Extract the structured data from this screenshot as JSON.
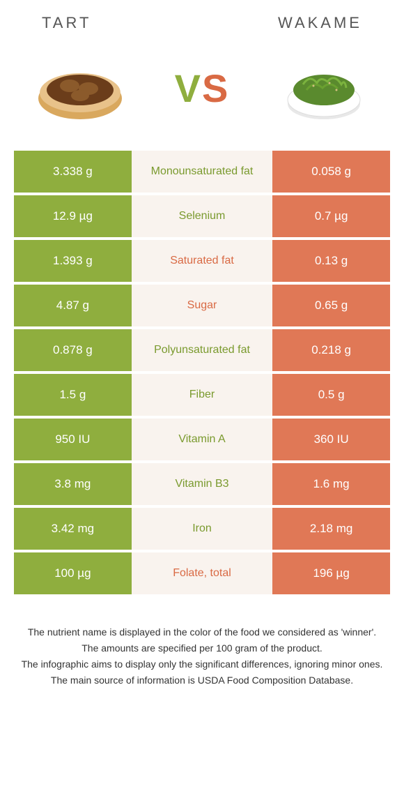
{
  "header": {
    "left_title": "TART",
    "right_title": "WAKAME"
  },
  "vs": {
    "v": "V",
    "s": "S"
  },
  "colors": {
    "green": "#8fae3e",
    "orange": "#e07856",
    "mid_bg": "#f9f3ee",
    "txt_green": "#7a9a2e",
    "txt_orange": "#d96a44"
  },
  "rows": [
    {
      "left": "3.338 g",
      "label": "Monounsaturated fat",
      "right": "0.058 g",
      "winner": "left"
    },
    {
      "left": "12.9 µg",
      "label": "Selenium",
      "right": "0.7 µg",
      "winner": "left"
    },
    {
      "left": "1.393 g",
      "label": "Saturated fat",
      "right": "0.13 g",
      "winner": "right"
    },
    {
      "left": "4.87 g",
      "label": "Sugar",
      "right": "0.65 g",
      "winner": "right"
    },
    {
      "left": "0.878 g",
      "label": "Polyunsaturated fat",
      "right": "0.218 g",
      "winner": "left"
    },
    {
      "left": "1.5 g",
      "label": "Fiber",
      "right": "0.5 g",
      "winner": "left"
    },
    {
      "left": "950 IU",
      "label": "Vitamin A",
      "right": "360 IU",
      "winner": "left"
    },
    {
      "left": "3.8 mg",
      "label": "Vitamin B3",
      "right": "1.6 mg",
      "winner": "left"
    },
    {
      "left": "3.42 mg",
      "label": "Iron",
      "right": "2.18 mg",
      "winner": "left"
    },
    {
      "left": "100 µg",
      "label": "Folate, total",
      "right": "196 µg",
      "winner": "right"
    }
  ],
  "footer": {
    "line1": "The nutrient name is displayed in the color of the food we considered as 'winner'.",
    "line2": "The amounts are specified per 100 gram of the product.",
    "line3": "The infographic aims to display only the significant differences, ignoring minor ones.",
    "line4": "The main source of information is USDA Food Composition Database."
  }
}
